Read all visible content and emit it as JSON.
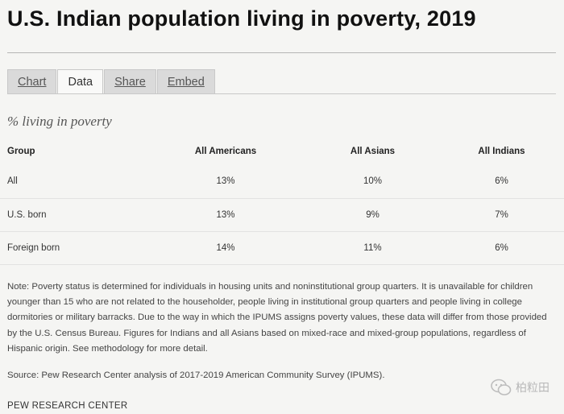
{
  "title": "U.S. Indian population living in poverty, 2019",
  "tabs": [
    {
      "label": "Chart"
    },
    {
      "label": "Data"
    },
    {
      "label": "Share"
    },
    {
      "label": "Embed"
    }
  ],
  "subtitle": "% living in poverty",
  "table": {
    "headers": [
      "Group",
      "All Americans",
      "All Asians",
      "All Indians"
    ],
    "rows": [
      [
        "All",
        "13%",
        "10%",
        "6%"
      ],
      [
        "U.S. born",
        "13%",
        "9%",
        "7%"
      ],
      [
        "Foreign born",
        "14%",
        "11%",
        "6%"
      ]
    ]
  },
  "note": "Note: Poverty status is determined for individuals in housing units and noninstitutional group quarters. It is unavailable for children younger than 15 who are not related to the householder, people living in institutional group quarters and people living in college dormitories or military barracks. Due to the way in which the IPUMS assigns poverty values, these data will differ from those provided by the U.S. Census Bureau. Figures for Indians and all Asians based on mixed-race and mixed-group populations, regardless of Hispanic origin. See methodology for more detail.",
  "source": "Source: Pew Research Center analysis of 2017-2019 American Community Survey (IPUMS).",
  "footer": "PEW RESEARCH CENTER",
  "watermark": "柏粒田"
}
